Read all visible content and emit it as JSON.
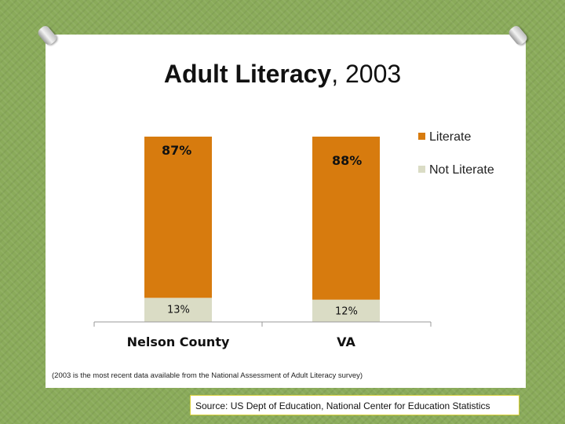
{
  "title": {
    "bold": "Adult Literacy",
    "rest": ", 2003"
  },
  "note": "(2003 is the most recent data available from the National Assessment of Adult Literacy survey)",
  "source": "Source: US Dept of Education, National Center for Education Statistics",
  "chart_data": {
    "type": "bar",
    "stacked": true,
    "categories": [
      "Nelson County",
      "VA"
    ],
    "series": [
      {
        "name": "Literate",
        "values": [
          87,
          88
        ],
        "labels": [
          "87%",
          "88%"
        ],
        "color": "#d77b0e"
      },
      {
        "name": "Not Literate",
        "values": [
          13,
          12
        ],
        "labels": [
          "13%",
          "12%"
        ],
        "color": "#dadcc5"
      }
    ],
    "ylim": [
      0,
      100
    ],
    "legend": "right",
    "grid": false
  }
}
